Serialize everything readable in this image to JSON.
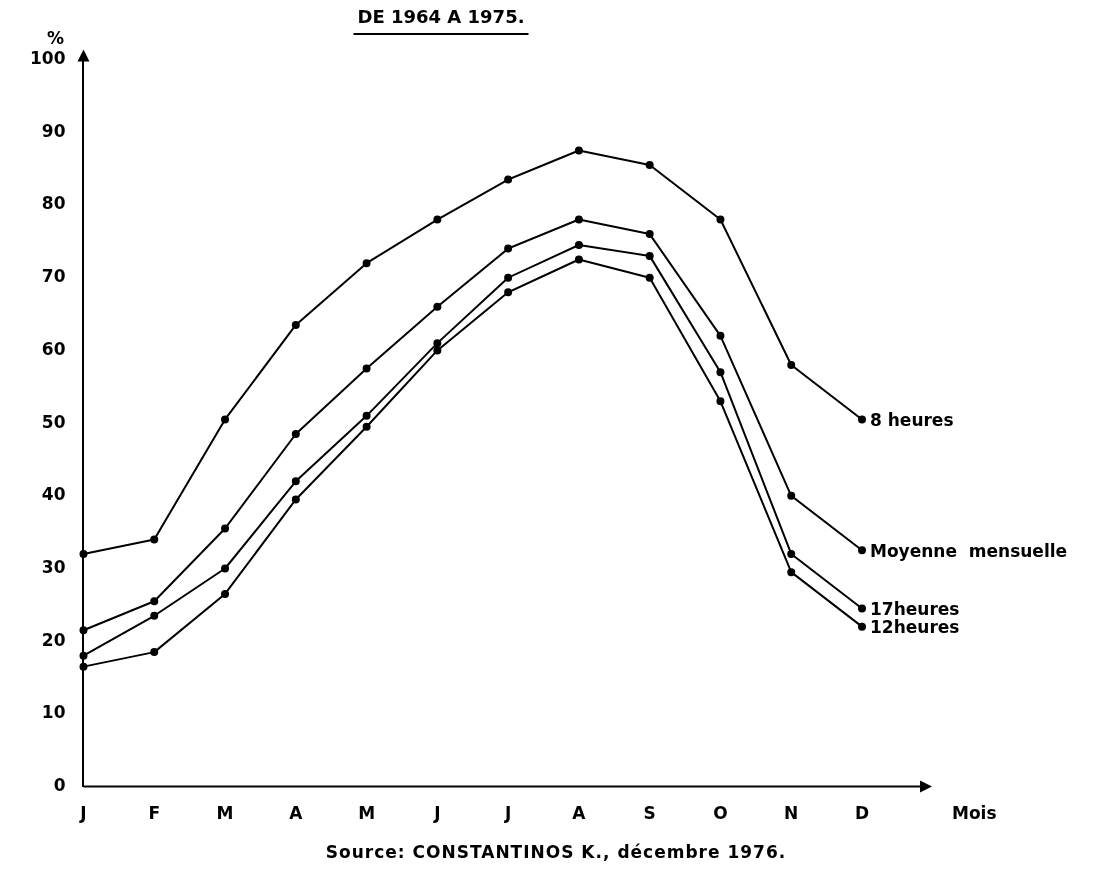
{
  "chart_data": {
    "type": "line",
    "title": "DE 1964 A 1975.",
    "ylabel": "%",
    "xlabel": "Mois",
    "categories": [
      "J",
      "F",
      "M",
      "A",
      "M",
      "J",
      "J",
      "A",
      "S",
      "O",
      "N",
      "D"
    ],
    "series": [
      {
        "name": "8 heures",
        "color": "#000000",
        "values": [
          32,
          34,
          50.5,
          63.5,
          72,
          78,
          83.5,
          87.5,
          85.5,
          78,
          58,
          50.5
        ]
      },
      {
        "name": "Moyenne  mensuelle",
        "color": "#000000",
        "values": [
          21.5,
          25.5,
          35.5,
          48.5,
          57.5,
          66,
          74,
          78,
          76,
          62,
          40,
          32.5
        ]
      },
      {
        "name": "17heures",
        "color": "#000000",
        "values": [
          18,
          23.5,
          30,
          42,
          51,
          61,
          70,
          74.5,
          73,
          57,
          32,
          24.5
        ]
      },
      {
        "name": "12heures",
        "color": "#000000",
        "values": [
          16.5,
          18.5,
          26.5,
          39.5,
          49.5,
          60,
          68,
          72.5,
          70,
          53,
          29.5,
          22
        ]
      }
    ],
    "ylim": [
      0,
      100
    ],
    "yticks": [
      0,
      10,
      20,
      30,
      40,
      50,
      60,
      70,
      80,
      90,
      100
    ],
    "grid": false,
    "legend": false,
    "marker": "circle",
    "line_style": "solid",
    "annotations": [
      "Source: CONSTANTINOS K., décembre 1976."
    ]
  }
}
